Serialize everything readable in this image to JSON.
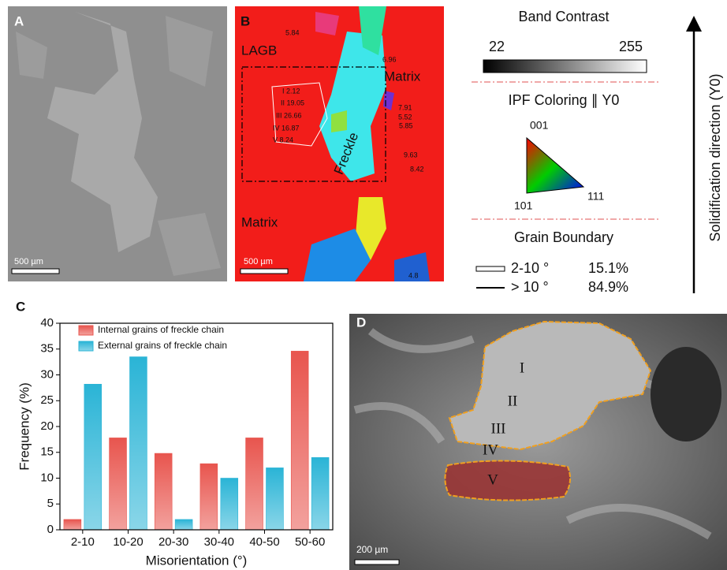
{
  "panels": {
    "a": {
      "label": "A",
      "scale": "500 µm"
    },
    "b": {
      "label": "B",
      "scale": "500 µm",
      "annotations": [
        "5.84",
        "LAGB",
        "6.96",
        "Matrix",
        "I 2.12",
        "II 19.05",
        "III 26.66",
        "IV 16.87",
        "V 8.24",
        "7.91",
        "5.52",
        "5.85",
        "Freckle",
        "9.63",
        "8.42",
        "Matrix",
        "4.8"
      ]
    },
    "legend": {
      "band_contrast": "Band Contrast",
      "min": "22",
      "max": "255",
      "ipf": "IPF Coloring ∥ Y0",
      "v001": "001",
      "v101": "101",
      "v111": "111",
      "grain_boundary": "Grain Boundary",
      "low": "2-10 °",
      "low_share": "15.1%",
      "high": "> 10 °",
      "high_share": "84.9%"
    },
    "direction": "Solidification direction (Y0)",
    "d": {
      "label": "D",
      "scale": "200 µm",
      "regions": [
        "I",
        "II",
        "III",
        "IV",
        "V"
      ]
    }
  },
  "chart_data": {
    "type": "bar",
    "label": "C",
    "categories": [
      "2-10",
      "10-20",
      "20-30",
      "30-40",
      "40-50",
      "50-60"
    ],
    "series": [
      {
        "name": "Internal grains of freckle chain",
        "color": "#e8554e",
        "values": [
          2,
          17.8,
          14.8,
          12.8,
          17.8,
          34.6
        ]
      },
      {
        "name": "External grains of freckle chain",
        "color": "#2ab4d6",
        "values": [
          28.2,
          33.5,
          2,
          10,
          12,
          14
        ]
      }
    ],
    "xlabel": "Misorientation (°)",
    "ylabel": "Frequency (%)",
    "ylim": [
      0,
      40
    ],
    "yticks": [
      0,
      5,
      10,
      15,
      20,
      25,
      30,
      35,
      40
    ]
  }
}
